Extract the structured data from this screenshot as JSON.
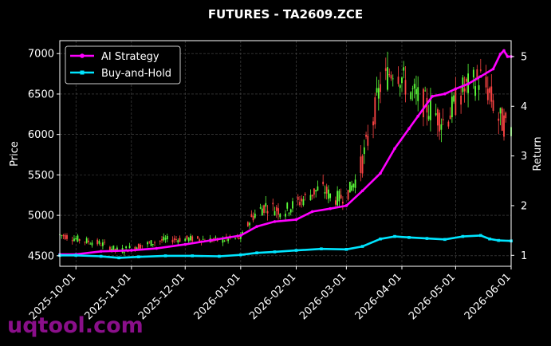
{
  "chart_data": {
    "type": "line",
    "title": "FUTURES - TA2609.ZCE",
    "ylabel_left": "Price",
    "ylabel_right": "Return",
    "watermark": "uqtool.com",
    "x_start": "2025-09-22",
    "x_end": "2026-06-01",
    "x_ticks": [
      "2025-10-01",
      "2025-11-01",
      "2025-12-01",
      "2026-01-01",
      "2026-02-01",
      "2026-03-01",
      "2026-04-01",
      "2026-05-01",
      "2026-06-01"
    ],
    "ylim_left": [
      4370,
      7160
    ],
    "yticks_left": [
      4500,
      5000,
      5500,
      6000,
      6500,
      7000
    ],
    "ylim_right": [
      0.78,
      5.32
    ],
    "yticks_right": [
      1,
      2,
      3,
      4,
      5
    ],
    "grid": true,
    "legend_position": "top-left",
    "colors": {
      "ai_strategy": "#ff00ff",
      "buy_and_hold": "#00e5ff",
      "candle_up": "#5bff3a",
      "candle_down": "#ff4444",
      "grid": "#4d4d4d",
      "background": "#000000"
    },
    "price_path": [
      [
        "2025-09-22",
        4760
      ],
      [
        "2025-10-05",
        4690
      ],
      [
        "2025-10-15",
        4650
      ],
      [
        "2025-10-25",
        4560
      ],
      [
        "2025-11-05",
        4620
      ],
      [
        "2025-11-20",
        4700
      ],
      [
        "2025-12-05",
        4710
      ],
      [
        "2025-12-20",
        4690
      ],
      [
        "2026-01-01",
        4720
      ],
      [
        "2026-01-08",
        5000
      ],
      [
        "2026-01-15",
        5120
      ],
      [
        "2026-01-25",
        5050
      ],
      [
        "2026-02-05",
        5200
      ],
      [
        "2026-02-15",
        5350
      ],
      [
        "2026-02-22",
        5200
      ],
      [
        "2026-03-01",
        5250
      ],
      [
        "2026-03-08",
        5500
      ],
      [
        "2026-03-15",
        6100
      ],
      [
        "2026-03-20",
        6600
      ],
      [
        "2026-03-28",
        6850
      ],
      [
        "2026-04-05",
        6550
      ],
      [
        "2026-04-15",
        6350
      ],
      [
        "2026-04-25",
        6150
      ],
      [
        "2026-05-05",
        6550
      ],
      [
        "2026-05-15",
        6700
      ],
      [
        "2026-05-20",
        6500
      ],
      [
        "2026-05-25",
        6200
      ],
      [
        "2026-06-01",
        6050
      ]
    ],
    "series": [
      {
        "name": "AI Strategy",
        "marker": "circle",
        "points": [
          [
            "2025-09-22",
            1.02
          ],
          [
            "2025-10-01",
            1.02
          ],
          [
            "2025-10-15",
            1.08
          ],
          [
            "2025-11-01",
            1.1
          ],
          [
            "2025-11-15",
            1.14
          ],
          [
            "2025-12-01",
            1.22
          ],
          [
            "2025-12-15",
            1.3
          ],
          [
            "2026-01-01",
            1.4
          ],
          [
            "2026-01-10",
            1.58
          ],
          [
            "2026-01-20",
            1.68
          ],
          [
            "2026-02-01",
            1.72
          ],
          [
            "2026-02-10",
            1.88
          ],
          [
            "2026-02-20",
            1.94
          ],
          [
            "2026-03-01",
            2.0
          ],
          [
            "2026-03-10",
            2.3
          ],
          [
            "2026-03-20",
            2.65
          ],
          [
            "2026-03-28",
            3.15
          ],
          [
            "2026-04-05",
            3.55
          ],
          [
            "2026-04-10",
            3.8
          ],
          [
            "2026-04-18",
            4.2
          ],
          [
            "2026-04-25",
            4.25
          ],
          [
            "2026-05-01",
            4.35
          ],
          [
            "2026-05-08",
            4.45
          ],
          [
            "2026-05-15",
            4.6
          ],
          [
            "2026-05-22",
            4.75
          ],
          [
            "2026-05-26",
            5.05
          ],
          [
            "2026-05-28",
            5.12
          ],
          [
            "2026-05-30",
            5.0
          ],
          [
            "2026-06-01",
            5.0
          ]
        ]
      },
      {
        "name": "Buy-and-Hold",
        "marker": "square",
        "points": [
          [
            "2025-09-22",
            1.0
          ],
          [
            "2025-10-01",
            1.0
          ],
          [
            "2025-10-15",
            0.98
          ],
          [
            "2025-10-25",
            0.95
          ],
          [
            "2025-11-05",
            0.97
          ],
          [
            "2025-11-20",
            0.99
          ],
          [
            "2025-12-05",
            0.99
          ],
          [
            "2025-12-20",
            0.98
          ],
          [
            "2026-01-01",
            1.01
          ],
          [
            "2026-01-10",
            1.05
          ],
          [
            "2026-01-20",
            1.07
          ],
          [
            "2026-02-01",
            1.1
          ],
          [
            "2026-02-15",
            1.13
          ],
          [
            "2026-03-01",
            1.12
          ],
          [
            "2026-03-10",
            1.18
          ],
          [
            "2026-03-20",
            1.33
          ],
          [
            "2026-03-28",
            1.38
          ],
          [
            "2026-04-05",
            1.36
          ],
          [
            "2026-04-15",
            1.34
          ],
          [
            "2026-04-25",
            1.32
          ],
          [
            "2026-05-05",
            1.38
          ],
          [
            "2026-05-15",
            1.4
          ],
          [
            "2026-05-20",
            1.33
          ],
          [
            "2026-05-25",
            1.3
          ],
          [
            "2026-06-01",
            1.29
          ]
        ]
      }
    ]
  }
}
